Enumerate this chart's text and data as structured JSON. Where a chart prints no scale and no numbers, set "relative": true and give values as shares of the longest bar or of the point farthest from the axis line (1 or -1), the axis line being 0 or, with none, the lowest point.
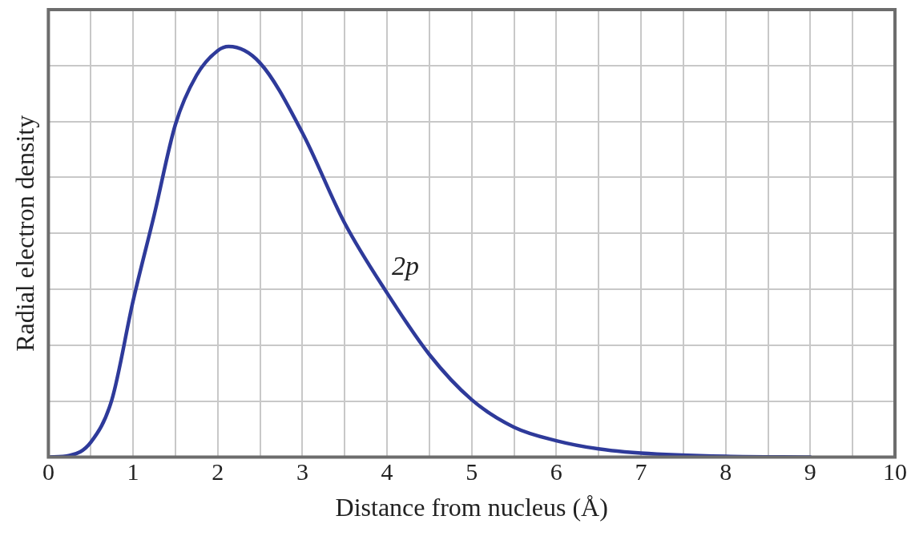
{
  "chart_data": {
    "type": "line",
    "relative": true,
    "xlabel": "Distance from nucleus (Å)",
    "ylabel": "Radial electron density",
    "x": [
      0,
      0.25,
      0.5,
      0.75,
      1,
      1.25,
      1.5,
      1.75,
      2,
      2.13,
      2.5,
      3,
      3.5,
      4,
      4.5,
      5,
      5.5,
      6,
      6.5,
      7,
      8,
      9
    ],
    "series": [
      {
        "name": "2p",
        "color": "#2e3a9a",
        "values": [
          0,
          0.004,
          0.036,
          0.14,
          0.38,
          0.59,
          0.81,
          0.93,
          0.99,
          1,
          0.96,
          0.79,
          0.57,
          0.4,
          0.25,
          0.14,
          0.073,
          0.04,
          0.02,
          0.01,
          0.002,
          0
        ]
      }
    ],
    "xlim": [
      0,
      10
    ],
    "xticks": [
      0,
      {
        "value": 0.5,
        "label": null
      },
      1,
      {
        "value": 1.5,
        "label": null
      },
      2,
      {
        "value": 2.5,
        "label": null
      },
      3,
      {
        "value": 3.5,
        "label": null
      },
      4,
      {
        "value": 4.5,
        "label": null
      },
      5,
      {
        "value": 5.5,
        "label": null
      },
      6,
      {
        "value": 6.5,
        "label": null
      },
      7,
      {
        "value": 7.5,
        "label": null
      },
      8,
      {
        "value": 8.5,
        "label": null
      },
      9,
      {
        "value": 9.5,
        "label": null
      },
      10
    ],
    "grid": true,
    "marker": "none",
    "line_style": "solid"
  }
}
